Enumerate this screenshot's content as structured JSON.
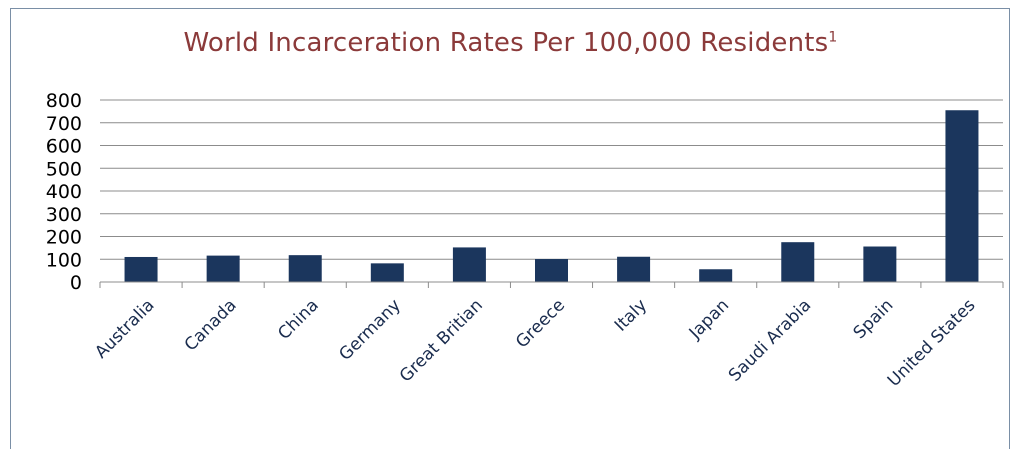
{
  "chart_data": {
    "type": "bar",
    "title": "World Incarceration Rates Per 100,000 Residents",
    "title_superscript": "1",
    "categories": [
      "Australia",
      "Canada",
      "China",
      "Germany",
      "Great Britian",
      "Greece",
      "Italy",
      "Japan",
      "Saudi Arabia",
      "Spain",
      "United States"
    ],
    "values": [
      110,
      116,
      118,
      82,
      152,
      101,
      111,
      56,
      175,
      156,
      755
    ],
    "ylim": [
      0,
      800
    ],
    "yticks": [
      "0",
      "100",
      "200",
      "300",
      "400",
      "500",
      "600",
      "700",
      "800"
    ],
    "grid": true,
    "bar_color": "#1b365d"
  }
}
